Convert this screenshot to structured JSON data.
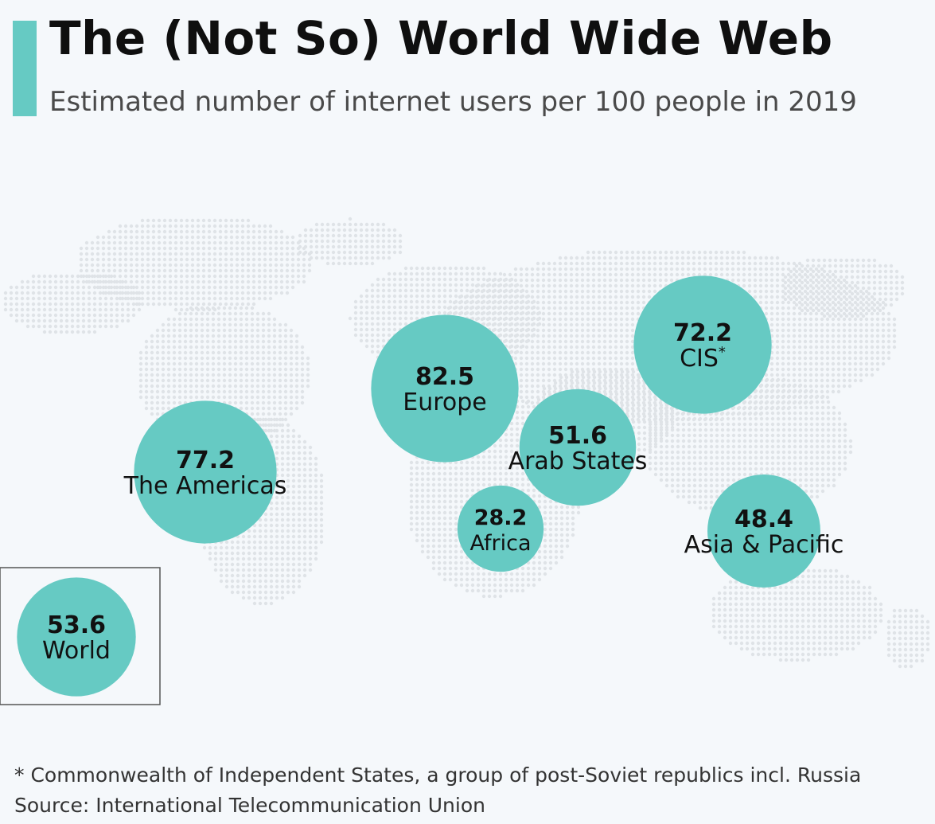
{
  "header": {
    "title": "The (Not So) World Wide Web",
    "subtitle": "Estimated number of internet users per 100 people in 2019"
  },
  "footer": {
    "note": "* Commonwealth of Independent States, a group of post-Soviet republics incl. Russia",
    "source": "Source: International Telecommunication Union"
  },
  "colors": {
    "bubble": "#66cac3",
    "accent": "#66cac3",
    "map_dots": "#dfe3e7"
  },
  "chart_data": {
    "type": "bubble-map",
    "title": "The (Not So) World Wide Web",
    "subtitle": "Estimated number of internet users per 100 people in 2019",
    "regions": [
      {
        "id": "americas",
        "label": "The Americas",
        "value": 77.2
      },
      {
        "id": "europe",
        "label": "Europe",
        "value": 82.5
      },
      {
        "id": "cis",
        "label": "CIS",
        "label_suffix": "*",
        "value": 72.2
      },
      {
        "id": "arab",
        "label": "Arab States",
        "value": 51.6
      },
      {
        "id": "africa",
        "label": "Africa",
        "value": 28.2
      },
      {
        "id": "asia",
        "label": "Asia & Pacific",
        "value": 48.4
      },
      {
        "id": "world",
        "label": "World",
        "value": 53.6
      }
    ]
  }
}
